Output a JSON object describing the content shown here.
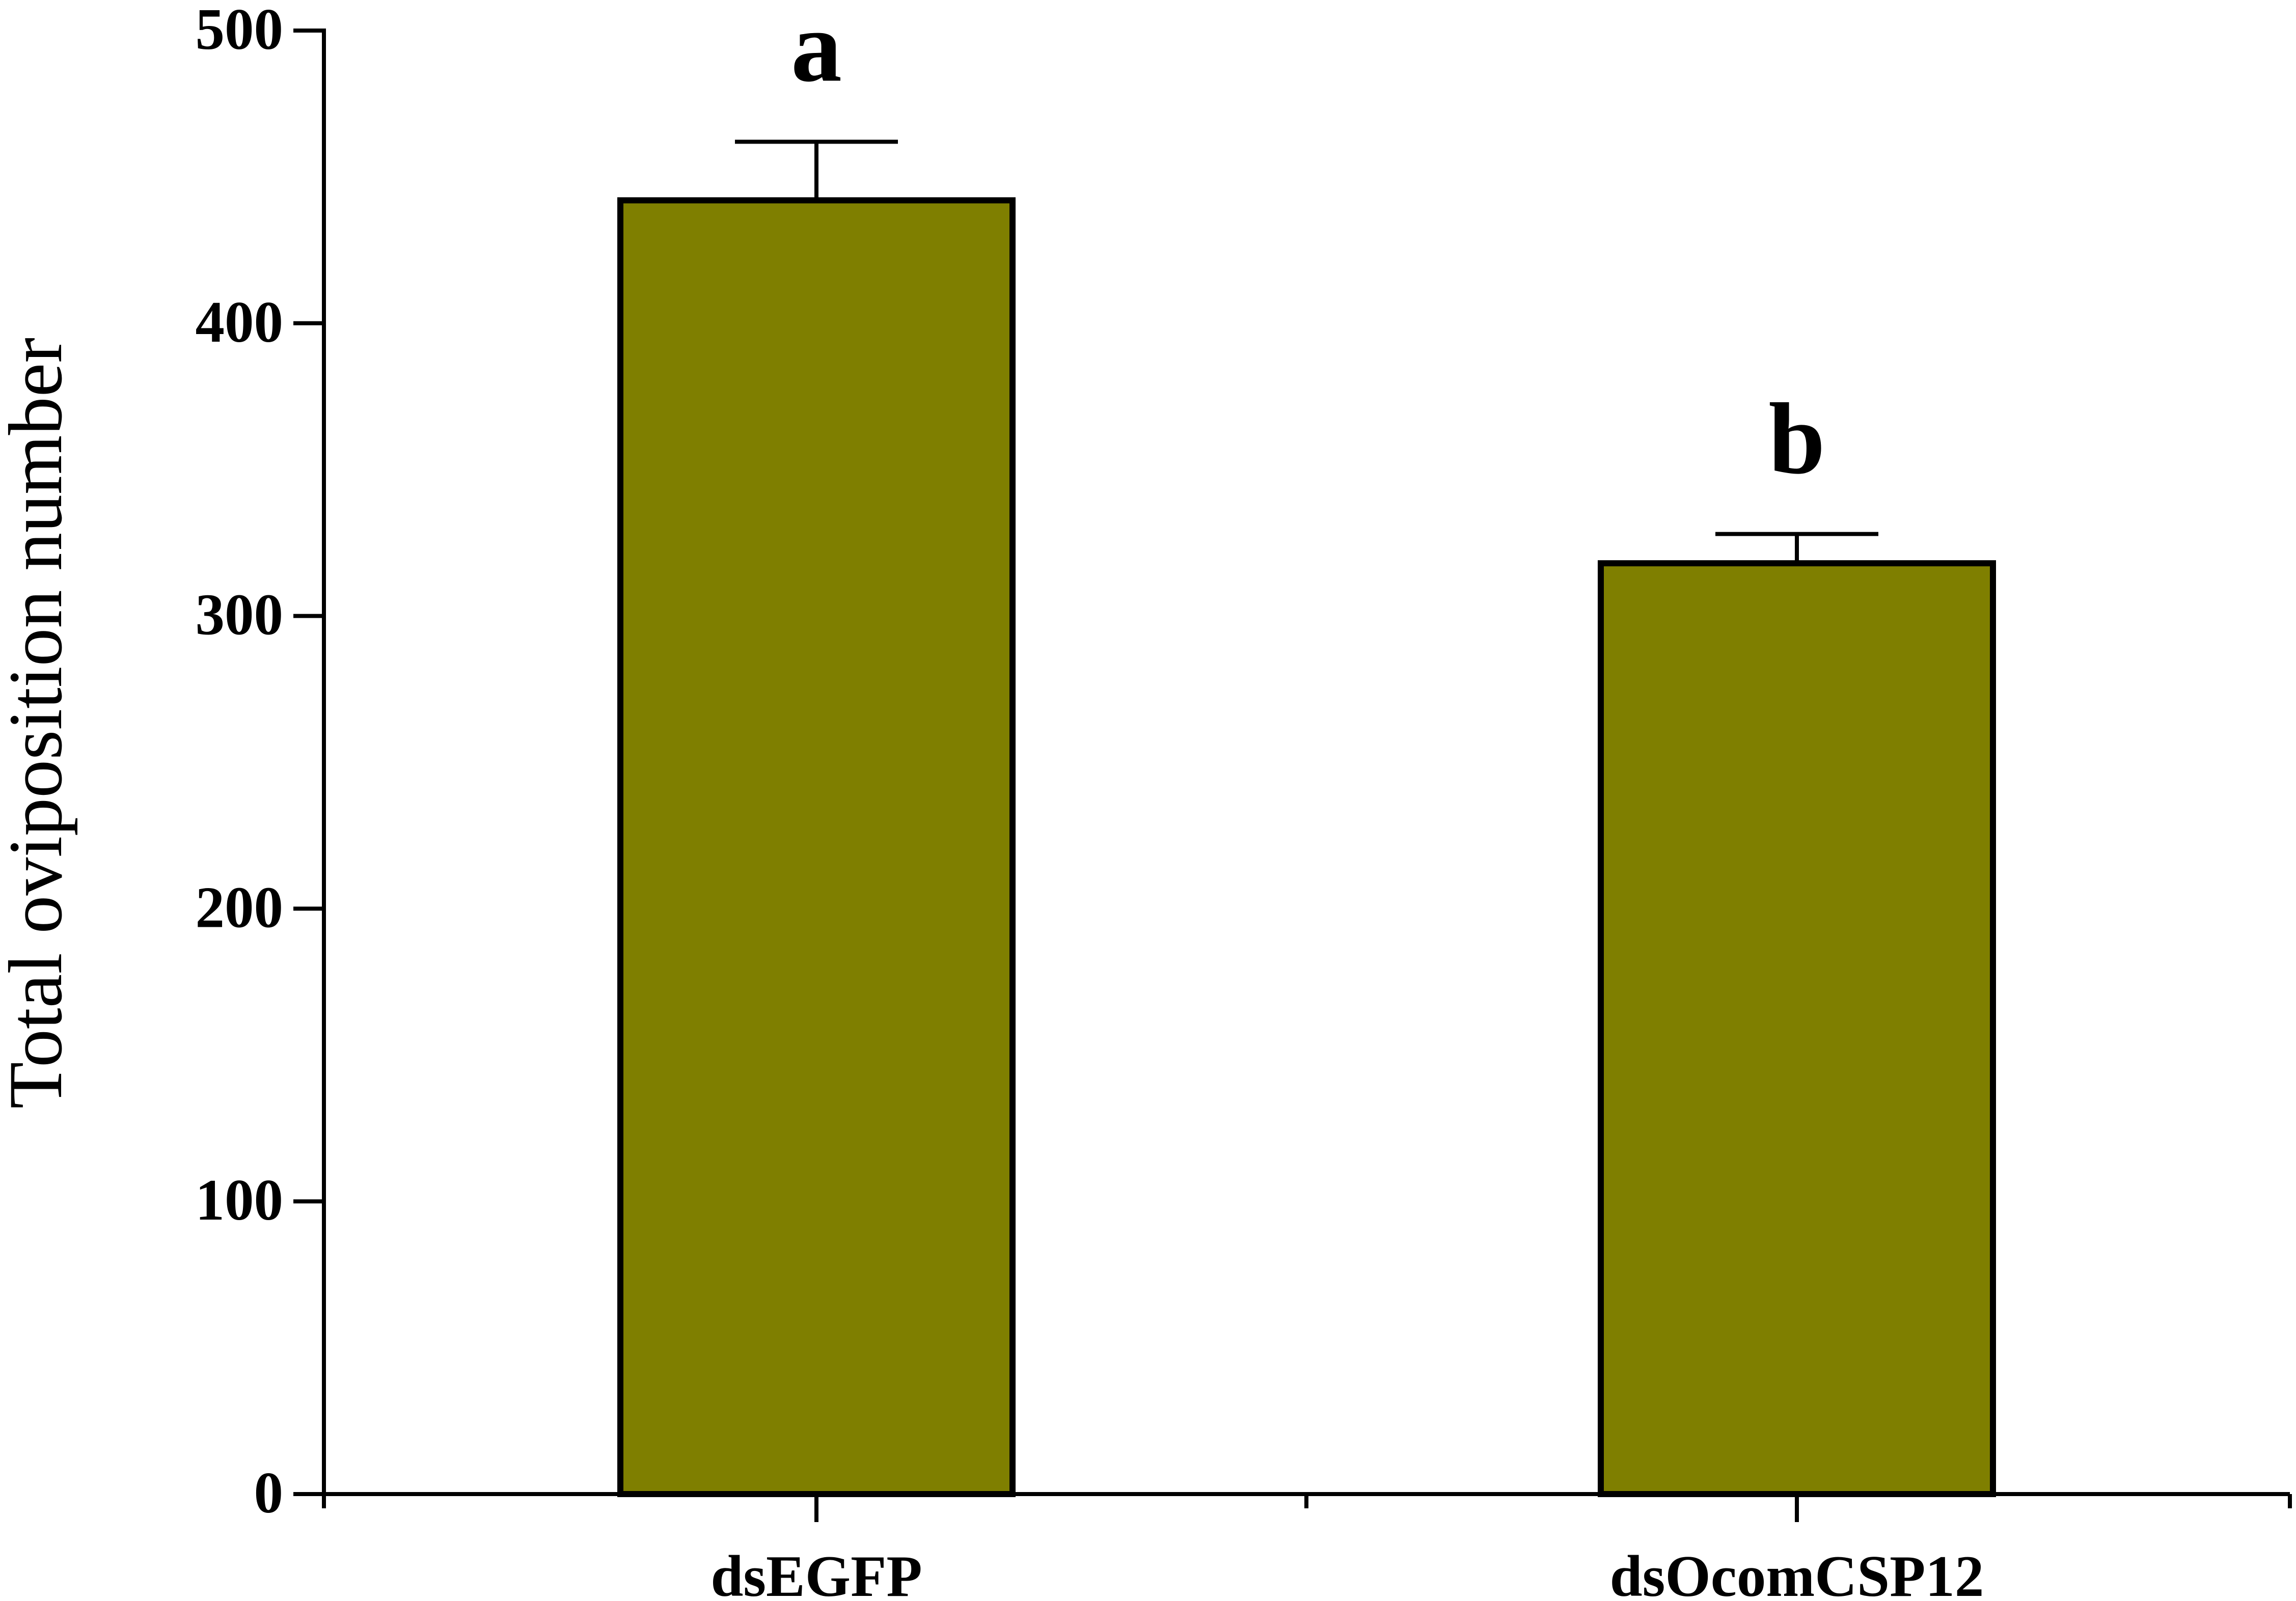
{
  "chart_data": {
    "type": "bar",
    "title": "",
    "xlabel": "",
    "ylabel": "Total oviposition number",
    "categories": [
      "dsEGFP",
      "dsOcomCSP12"
    ],
    "values": [
      442,
      318
    ],
    "errors": [
      20,
      10
    ],
    "significance": [
      "a",
      "b"
    ],
    "ylim": [
      0,
      500
    ],
    "yticks": [
      0,
      100,
      200,
      300,
      400,
      500
    ],
    "bar_color": "#7f7f00",
    "grid": false,
    "legend": "none"
  }
}
